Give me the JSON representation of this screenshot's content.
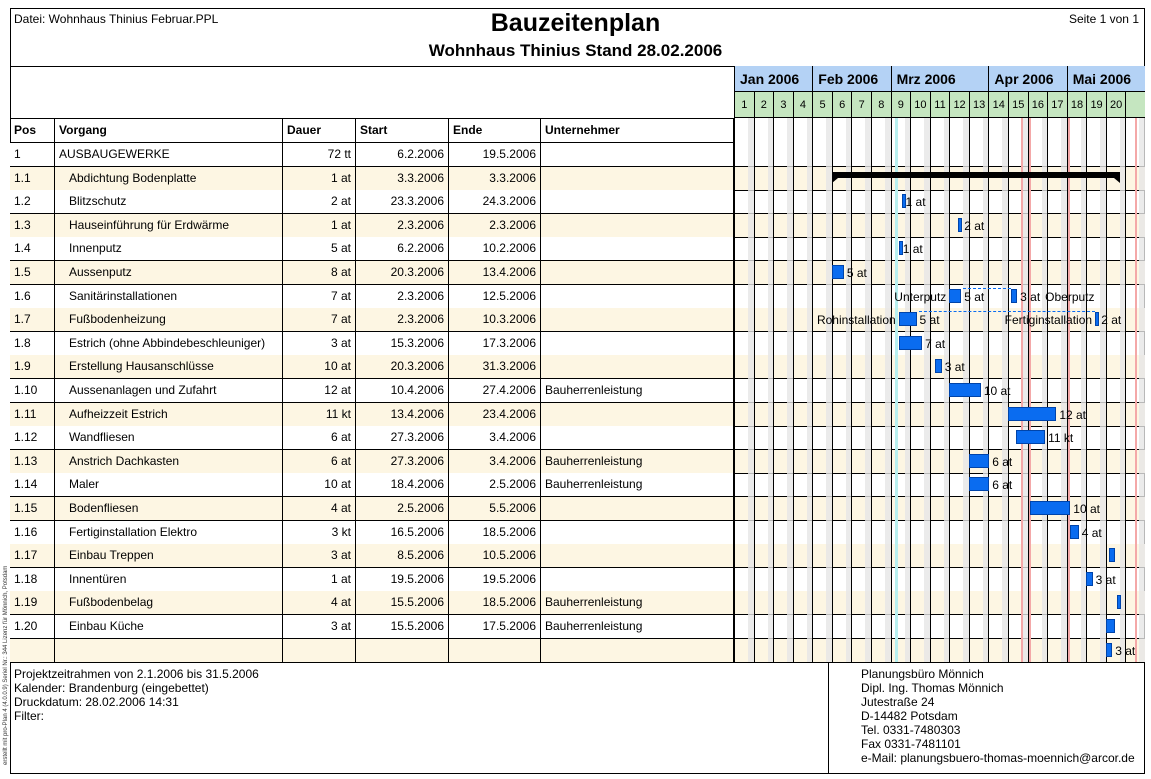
{
  "header": {
    "file": "Datei: Wohnhaus Thinius Februar.PPL",
    "title": "Bauzeitenplan",
    "subtitle": "Wohnhaus Thinius Stand 28.02.2006",
    "page": "Seite 1 von 1"
  },
  "side_note": "erstellt mit pro-Plan 4 (4.0.0.9)   Seriel Nr.: 344   Lizenz für Mönnich, Potsdam",
  "columns": [
    "Pos",
    "Vorgang",
    "Dauer",
    "Start",
    "Ende",
    "Unternehmer"
  ],
  "timeline": {
    "months": [
      {
        "label": "Jan 2006",
        "weeks": 4
      },
      {
        "label": "Feb 2006",
        "weeks": 4
      },
      {
        "label": "Mrz 2006",
        "weeks": 5
      },
      {
        "label": "Apr 2006",
        "weeks": 4
      },
      {
        "label": "Mai 2006",
        "weeks": 4
      }
    ],
    "weeks": [
      "1",
      "2",
      "3",
      "4",
      "5",
      "6",
      "7",
      "8",
      "9",
      "10",
      "11",
      "12",
      "13",
      "14",
      "15",
      "16",
      "17",
      "18",
      "19",
      "20",
      ""
    ],
    "today": "2006-02-28",
    "holidays": [
      "2006-04-14",
      "2006-04-17",
      "2006-05-01",
      "2006-05-25"
    ],
    "bar_color": "#0a6cf0",
    "summary_color": "#000000"
  },
  "rows": [
    {
      "pos": "1",
      "name": "AUSBAUGEWERKE",
      "dauer": "72 tt",
      "start": "6.2.2006",
      "ende": "19.5.2006",
      "firm": "",
      "summary": true,
      "bars": [
        {
          "s": "2006-02-06",
          "e": "2006-05-19"
        }
      ]
    },
    {
      "pos": "1.1",
      "name": "Abdichtung Bodenplatte",
      "dauer": "1 at",
      "start": "3.3.2006",
      "ende": "3.3.2006",
      "firm": "",
      "bars": [
        {
          "s": "2006-03-03",
          "e": "2006-03-03",
          "right": "1 at"
        }
      ]
    },
    {
      "pos": "1.2",
      "name": "Blitzschutz",
      "dauer": "2 at",
      "start": "23.3.2006",
      "ende": "24.3.2006",
      "firm": "",
      "bars": [
        {
          "s": "2006-03-23",
          "e": "2006-03-24",
          "right": "2 at"
        }
      ]
    },
    {
      "pos": "1.3",
      "name": "Hauseinführung für Erdwärme",
      "dauer": "1 at",
      "start": "2.3.2006",
      "ende": "2.3.2006",
      "firm": "",
      "bars": [
        {
          "s": "2006-03-02",
          "e": "2006-03-02",
          "right": "1 at"
        }
      ]
    },
    {
      "pos": "1.4",
      "name": "Innenputz",
      "dauer": "5 at",
      "start": "6.2.2006",
      "ende": "10.2.2006",
      "firm": "",
      "bars": [
        {
          "s": "2006-02-06",
          "e": "2006-02-10",
          "right": "5 at"
        }
      ]
    },
    {
      "pos": "1.5",
      "name": "Aussenputz",
      "dauer": "8 at",
      "start": "20.3.2006",
      "ende": "13.4.2006",
      "firm": "",
      "bars": [
        {
          "s": "2006-03-20",
          "e": "2006-03-24",
          "left": "Unterputz",
          "right": "5 at"
        },
        {
          "s": "2006-04-11",
          "e": "2006-04-13",
          "left": "Oberputz",
          "right": "3 at"
        }
      ]
    },
    {
      "pos": "1.6",
      "name": "Sanitärinstallationen",
      "dauer": "7 at",
      "start": "2.3.2006",
      "ende": "12.5.2006",
      "firm": "",
      "bars": [
        {
          "s": "2006-03-02",
          "e": "2006-03-08",
          "left": "Rohinstallation",
          "right": "5 at"
        },
        {
          "s": "2006-05-11",
          "e": "2006-05-12",
          "left": "Fertiginstallation",
          "right": "2 at"
        }
      ]
    },
    {
      "pos": "1.7",
      "name": "Fußbodenheizung",
      "dauer": "7 at",
      "start": "2.3.2006",
      "ende": "10.3.2006",
      "firm": "",
      "bars": [
        {
          "s": "2006-03-02",
          "e": "2006-03-10",
          "right": "7 at"
        }
      ]
    },
    {
      "pos": "1.8",
      "name": "Estrich (ohne Abbindebeschleuniger)",
      "dauer": "3 at",
      "start": "15.3.2006",
      "ende": "17.3.2006",
      "firm": "",
      "bars": [
        {
          "s": "2006-03-15",
          "e": "2006-03-17",
          "right": "3 at"
        }
      ]
    },
    {
      "pos": "1.9",
      "name": "Erstellung Hausanschlüsse",
      "dauer": "10 at",
      "start": "20.3.2006",
      "ende": "31.3.2006",
      "firm": "",
      "bars": [
        {
          "s": "2006-03-20",
          "e": "2006-03-31",
          "right": "10 at"
        }
      ]
    },
    {
      "pos": "1.10",
      "name": "Aussenanlagen und Zufahrt",
      "dauer": "12 at",
      "start": "10.4.2006",
      "ende": "27.4.2006",
      "firm": "Bauherrenleistung",
      "bars": [
        {
          "s": "2006-04-10",
          "e": "2006-04-27",
          "right": "12 at"
        }
      ]
    },
    {
      "pos": "1.11",
      "name": "Aufheizzeit Estrich",
      "dauer": "11 kt",
      "start": "13.4.2006",
      "ende": "23.4.2006",
      "firm": "",
      "bars": [
        {
          "s": "2006-04-13",
          "e": "2006-04-23",
          "right": "11 kt"
        }
      ]
    },
    {
      "pos": "1.12",
      "name": "Wandfliesen",
      "dauer": "6 at",
      "start": "27.3.2006",
      "ende": "3.4.2006",
      "firm": "",
      "bars": [
        {
          "s": "2006-03-27",
          "e": "2006-04-03",
          "right": "6 at"
        }
      ]
    },
    {
      "pos": "1.13",
      "name": "Anstrich Dachkasten",
      "dauer": "6 at",
      "start": "27.3.2006",
      "ende": "3.4.2006",
      "firm": "Bauherrenleistung",
      "bars": [
        {
          "s": "2006-03-27",
          "e": "2006-04-03",
          "right": "6 at"
        }
      ]
    },
    {
      "pos": "1.14",
      "name": "Maler",
      "dauer": "10 at",
      "start": "18.4.2006",
      "ende": "2.5.2006",
      "firm": "Bauherrenleistung",
      "bars": [
        {
          "s": "2006-04-18",
          "e": "2006-05-02",
          "right": "10 at"
        }
      ]
    },
    {
      "pos": "1.15",
      "name": "Bodenfliesen",
      "dauer": "4 at",
      "start": "2.5.2006",
      "ende": "5.5.2006",
      "firm": "",
      "bars": [
        {
          "s": "2006-05-02",
          "e": "2006-05-05",
          "right": "4 at"
        }
      ]
    },
    {
      "pos": "1.16",
      "name": "Fertiginstallation Elektro",
      "dauer": "3 kt",
      "start": "16.5.2006",
      "ende": "18.5.2006",
      "firm": "",
      "bars": [
        {
          "s": "2006-05-16",
          "e": "2006-05-18",
          "right": ""
        }
      ]
    },
    {
      "pos": "1.17",
      "name": "Einbau Treppen",
      "dauer": "3 at",
      "start": "8.5.2006",
      "ende": "10.5.2006",
      "firm": "",
      "bars": [
        {
          "s": "2006-05-08",
          "e": "2006-05-10",
          "right": "3 at"
        }
      ]
    },
    {
      "pos": "1.18",
      "name": "Innentüren",
      "dauer": "1 at",
      "start": "19.5.2006",
      "ende": "19.5.2006",
      "firm": "",
      "bars": [
        {
          "s": "2006-05-19",
          "e": "2006-05-19",
          "right": ""
        }
      ]
    },
    {
      "pos": "1.19",
      "name": "Fußbodenbelag",
      "dauer": "4 at",
      "start": "15.5.2006",
      "ende": "18.5.2006",
      "firm": "Bauherrenleistung",
      "bars": [
        {
          "s": "2006-05-15",
          "e": "2006-05-18",
          "right": ""
        }
      ]
    },
    {
      "pos": "1.20",
      "name": "Einbau Küche",
      "dauer": "3 at",
      "start": "15.5.2006",
      "ende": "17.5.2006",
      "firm": "Bauherrenleistung",
      "bars": [
        {
          "s": "2006-05-15",
          "e": "2006-05-17",
          "right": "3 at"
        }
      ]
    }
  ],
  "footer": {
    "left": [
      "Projektzeitrahmen von 2.1.2006 bis 31.5.2006",
      "Kalender: Brandenburg (eingebettet)",
      "Druckdatum: 28.02.2006 14:31",
      "Filter:"
    ],
    "right": [
      "Planungsbüro Mönnich",
      "Dipl. Ing. Thomas Mönnich",
      "Jutestraße 24",
      "D-14482 Potsdam",
      "Tel. 0331-7480303",
      "Fax 0331-7481101",
      "e-Mail: planungsbuero-thomas-moennich@arcor.de"
    ]
  }
}
